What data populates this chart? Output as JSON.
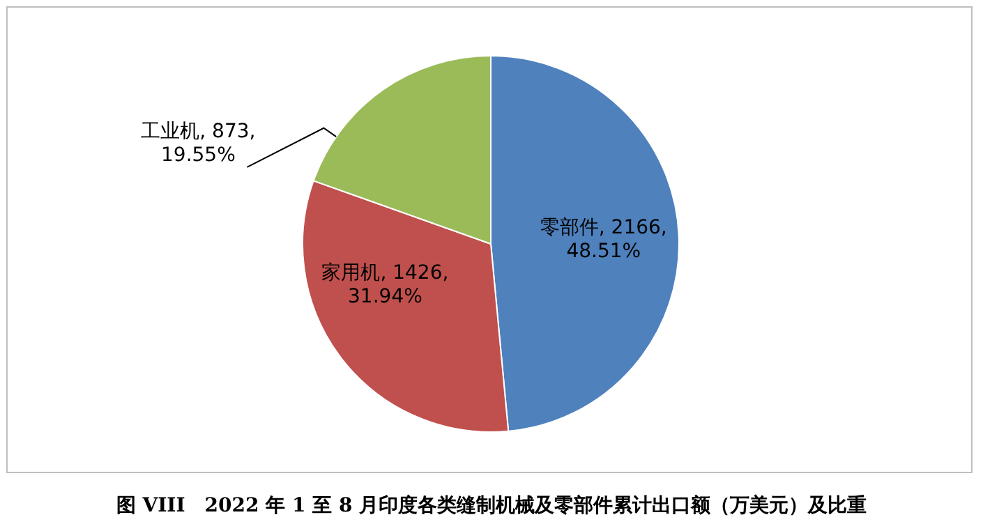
{
  "chart_data": {
    "type": "pie",
    "categories": [
      "零部件",
      "家用机",
      "工业机"
    ],
    "values": [
      2166,
      1426,
      873
    ],
    "colors": [
      "#4f81bd",
      "#c0504d",
      "#9bbb59"
    ],
    "value_labels": [
      "2166, 48.51%",
      "1426, 31.94%",
      "873, 19.55%"
    ],
    "legend": false,
    "annotations": [
      "图 VIII　2022 年 1 至 8 月印度各类缝制机械及零部件累计出口额（万美元）及比重"
    ]
  }
}
